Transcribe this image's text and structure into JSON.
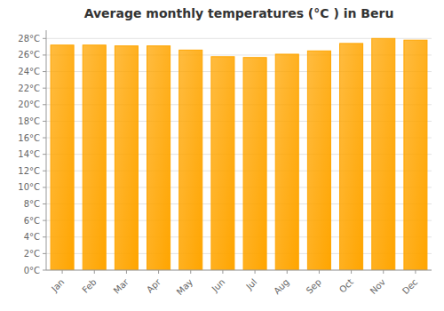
{
  "chart_data": {
    "type": "bar",
    "title": "Average monthly temperatures (°C ) in Beru",
    "categories": [
      "Jan",
      "Feb",
      "Mar",
      "Apr",
      "May",
      "Jun",
      "Jul",
      "Aug",
      "Sep",
      "Oct",
      "Nov",
      "Dec"
    ],
    "values": [
      27.2,
      27.2,
      27.1,
      27.1,
      26.6,
      25.8,
      25.7,
      26.1,
      26.5,
      27.4,
      28.0,
      27.8
    ],
    "color": "#FFA500",
    "ylim": [
      0,
      29
    ],
    "yticks": [
      {
        "value": 0,
        "label": "0°C"
      },
      {
        "value": 2,
        "label": "2°C"
      },
      {
        "value": 4,
        "label": "4°C"
      },
      {
        "value": 6,
        "label": "6°C"
      },
      {
        "value": 8,
        "label": "8°C"
      },
      {
        "value": 10,
        "label": "10°C"
      },
      {
        "value": 12,
        "label": "12°C"
      },
      {
        "value": 14,
        "label": "14°C"
      },
      {
        "value": 16,
        "label": "16°C"
      },
      {
        "value": 18,
        "label": "18°C"
      },
      {
        "value": 20,
        "label": "20°C"
      },
      {
        "value": 22,
        "label": "22°C"
      },
      {
        "value": 24,
        "label": "24°C"
      },
      {
        "value": 26,
        "label": "26°C"
      },
      {
        "value": 28,
        "label": "28°C"
      }
    ],
    "grid": true
  }
}
